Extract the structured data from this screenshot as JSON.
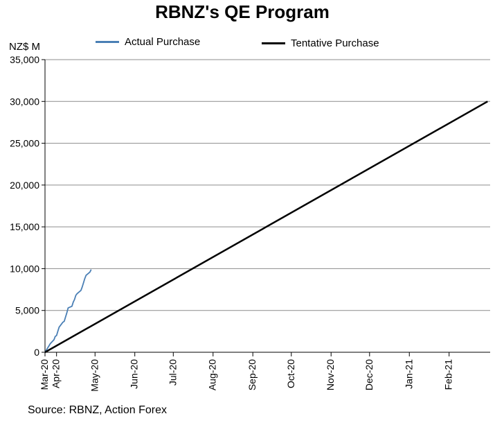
{
  "chart_data": {
    "type": "line",
    "title": "RBNZ's QE Program",
    "ylabel": "NZ$ M",
    "source": "Source: RBNZ, Action Forex",
    "ylim": [
      0,
      35000
    ],
    "y_ticks": [
      "0",
      "5,000",
      "10,000",
      "15,000",
      "20,000",
      "25,000",
      "30,000",
      "35,000"
    ],
    "x_ticks": [
      "Mar-20",
      "Apr-20",
      "May-20",
      "Jun-20",
      "Jul-20",
      "Aug-20",
      "Sep-20",
      "Oct-20",
      "Nov-20",
      "Dec-20",
      "Jan-21",
      "Feb-21"
    ],
    "xlim": [
      "2020-03-23",
      "2021-03-05"
    ],
    "grid": "horizontal",
    "legend_position": "top",
    "series": [
      {
        "name": "Actual Purchase",
        "color": "#4a7fb5",
        "points": [
          [
            "2020-03-23",
            0
          ],
          [
            "2020-03-24",
            250
          ],
          [
            "2020-03-25",
            500
          ],
          [
            "2020-03-26",
            750
          ],
          [
            "2020-03-27",
            1000
          ],
          [
            "2020-03-30",
            1500
          ],
          [
            "2020-03-31",
            1900
          ],
          [
            "2020-04-01",
            2000
          ],
          [
            "2020-04-02",
            2500
          ],
          [
            "2020-04-03",
            3000
          ],
          [
            "2020-04-06",
            3600
          ],
          [
            "2020-04-07",
            3700
          ],
          [
            "2020-04-08",
            4200
          ],
          [
            "2020-04-09",
            4700
          ],
          [
            "2020-04-10",
            5300
          ],
          [
            "2020-04-13",
            5500
          ],
          [
            "2020-04-14",
            6000
          ],
          [
            "2020-04-15",
            6300
          ],
          [
            "2020-04-16",
            6800
          ],
          [
            "2020-04-17",
            7000
          ],
          [
            "2020-04-20",
            7400
          ],
          [
            "2020-04-21",
            7800
          ],
          [
            "2020-04-22",
            8300
          ],
          [
            "2020-04-23",
            8800
          ],
          [
            "2020-04-24",
            9200
          ],
          [
            "2020-04-27",
            9600
          ],
          [
            "2020-04-28",
            9900
          ]
        ]
      },
      {
        "name": "Tentative Purchase",
        "color": "#000000",
        "points": [
          [
            "2020-03-23",
            0
          ],
          [
            "2021-03-03",
            30000
          ]
        ]
      }
    ]
  }
}
